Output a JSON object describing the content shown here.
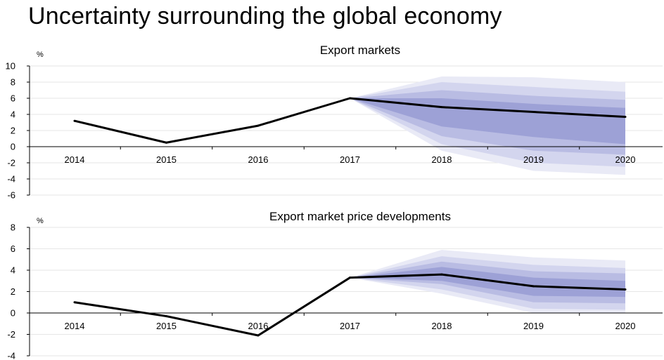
{
  "page": {
    "title": "Uncertainty surrounding the global economy"
  },
  "colors": {
    "line": "#000000",
    "fan_outer": "#e9eaf6",
    "fan_mid1": "#d3d5ee",
    "fan_mid2": "#b9bce3",
    "fan_inner": "#9da1d6"
  },
  "chart_data": [
    {
      "type": "line",
      "title": "Export markets",
      "ylabel": "%",
      "ylim": [
        -6,
        10
      ],
      "yticks": [
        -6,
        -4,
        -2,
        0,
        2,
        4,
        6,
        8,
        10
      ],
      "categories": [
        "2014",
        "2015",
        "2016",
        "2017",
        "2018",
        "2019",
        "2020"
      ],
      "series": [
        {
          "values": [
            3.2,
            0.5,
            2.6,
            6.0,
            4.9,
            4.3,
            3.7
          ]
        }
      ],
      "fan_chart": {
        "start": "2017",
        "bands": [
          {
            "lower": [
              6.0,
              -0.5,
              -3.0,
              -3.5
            ],
            "upper": [
              6.0,
              8.7,
              8.6,
              8.0
            ]
          },
          {
            "lower": [
              6.0,
              0.3,
              -2.0,
              -2.5
            ],
            "upper": [
              6.0,
              8.0,
              7.4,
              6.8
            ]
          },
          {
            "lower": [
              6.0,
              1.3,
              -0.5,
              -1.0
            ],
            "upper": [
              6.0,
              7.0,
              6.3,
              5.8
            ]
          },
          {
            "lower": [
              6.0,
              2.5,
              1.2,
              0.3
            ],
            "upper": [
              6.0,
              6.0,
              5.3,
              4.8
            ]
          }
        ]
      },
      "grid": true
    },
    {
      "type": "line",
      "title": "Export market price developments",
      "ylabel": "%",
      "ylim": [
        -4,
        8
      ],
      "yticks": [
        -4,
        -2,
        0,
        2,
        4,
        6,
        8
      ],
      "categories": [
        "2014",
        "2015",
        "2016",
        "2017",
        "2018",
        "2019",
        "2020"
      ],
      "series": [
        {
          "values": [
            1.0,
            -0.3,
            -2.1,
            3.3,
            3.6,
            2.5,
            2.2
          ]
        }
      ],
      "fan_chart": {
        "start": "2017",
        "bands": [
          {
            "lower": [
              3.3,
              1.8,
              0.0,
              0.0
            ],
            "upper": [
              3.3,
              5.9,
              5.2,
              4.9
            ]
          },
          {
            "lower": [
              3.3,
              2.2,
              0.4,
              0.3
            ],
            "upper": [
              3.3,
              5.3,
              4.5,
              4.2
            ]
          },
          {
            "lower": [
              3.3,
              2.7,
              1.0,
              0.9
            ],
            "upper": [
              3.3,
              4.8,
              3.9,
              3.7
            ]
          },
          {
            "lower": [
              3.3,
              3.0,
              1.6,
              1.5
            ],
            "upper": [
              3.3,
              4.3,
              3.3,
              3.0
            ]
          }
        ]
      },
      "grid": true
    }
  ]
}
